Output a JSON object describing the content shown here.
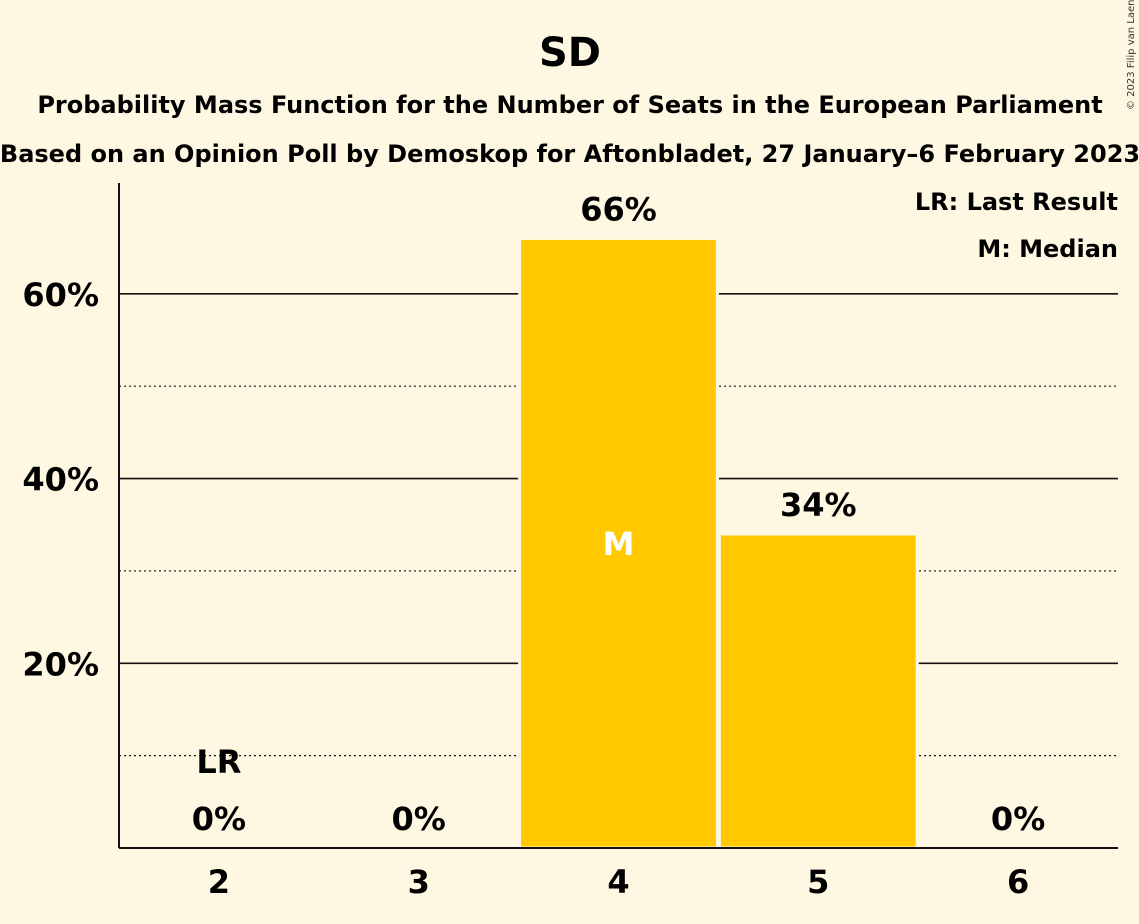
{
  "title": "SD",
  "subtitle": "Probability Mass Function for the Number of Seats in the European Parliament",
  "subtitle2": "Based on an Opinion Poll by Demoskop for Aftonbladet, 27 January–6 February 2023",
  "credit": "© 2023 Filip van Laenen",
  "legend": {
    "last_result": "LR: Last Result",
    "median": "M: Median"
  },
  "colors": {
    "background": "#FEF8E2",
    "bar": "#FFC800",
    "text": "#111111"
  },
  "chart_data": {
    "type": "bar",
    "title": "SD",
    "categories": [
      "2",
      "3",
      "4",
      "5",
      "6"
    ],
    "values": [
      0,
      0,
      66,
      34,
      0
    ],
    "value_labels": [
      "0%",
      "0%",
      "66%",
      "34%",
      "0%"
    ],
    "ylim": [
      0,
      72
    ],
    "yticks_major": [
      20,
      40,
      60
    ],
    "ytick_labels": [
      "20%",
      "40%",
      "60%"
    ],
    "yticks_minor": [
      10,
      30,
      50
    ],
    "last_result_category": "2",
    "last_result_label": "LR",
    "median_category": "4",
    "median_label": "M",
    "legend_position": "top-right",
    "grid": true
  }
}
